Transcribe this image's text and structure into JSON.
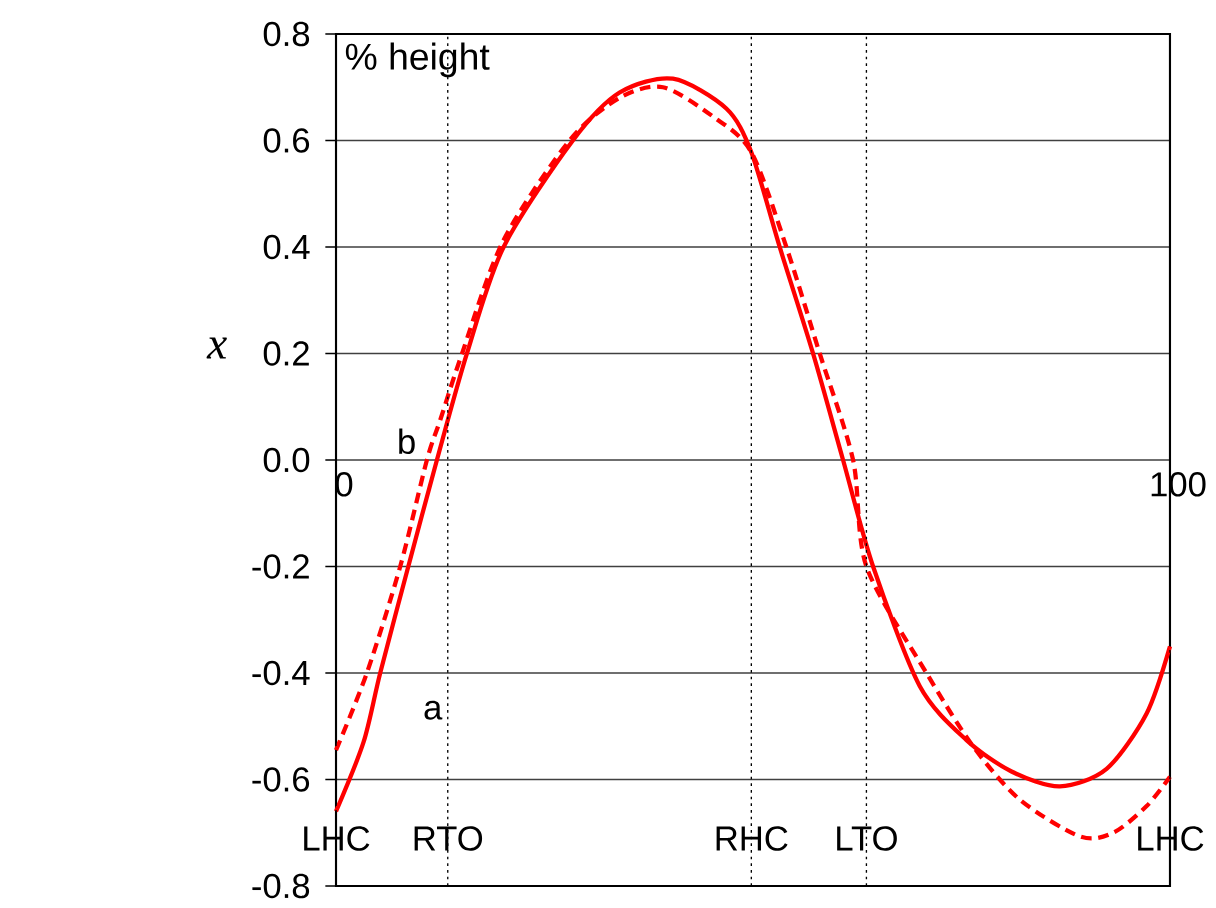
{
  "chart_data": {
    "type": "line",
    "title": "% height",
    "ylabel": "x",
    "xlim": [
      0,
      100
    ],
    "xticks": [
      0,
      100
    ],
    "ylim": [
      -0.8,
      0.8
    ],
    "yticks": [
      -0.8,
      -0.6,
      -0.4,
      -0.2,
      {
        "value": 0,
        "label": "0.0"
      },
      0.2,
      0.4,
      0.6,
      0.8
    ],
    "grid": "y",
    "marker": "none",
    "series": [
      {
        "color": "#ff0000",
        "line_style": "solid",
        "x": [
          0,
          3.3,
          5.3,
          8.5,
          12.1,
          15.7,
          20.1,
          28.4,
          34,
          40.4,
          46.8,
          49.8,
          53.2,
          57.2,
          60.8,
          64.4,
          70,
          75.6,
          81,
          86.8,
          92.4,
          97.2,
          100
        ],
        "values": [
          -0.66,
          -0.53,
          -0.4,
          -0.21,
          0.0,
          0.2,
          0.4,
          0.6,
          0.69,
          0.716,
          0.66,
          0.578,
          0.4,
          0.2,
          0.0,
          -0.2,
          -0.425,
          -0.526,
          -0.585,
          -0.613,
          -0.58,
          -0.476,
          -0.35
        ]
      },
      {
        "color": "#ff0000",
        "line_style": "dashed",
        "x": [
          0,
          3.7,
          7.7,
          10.9,
          12.5,
          14.9,
          20,
          28,
          34,
          39.2,
          45.2,
          49.8,
          54,
          58,
          62,
          63.6,
          70.8,
          76.4,
          82,
          89.2,
          93.2,
          97.2,
          100
        ],
        "values": [
          -0.545,
          -0.4,
          -0.2,
          0.0,
          0.075,
          0.19,
          0.41,
          0.6,
          0.68,
          0.7,
          0.645,
          0.578,
          0.4,
          0.2,
          0.0,
          -0.2,
          -0.4,
          -0.538,
          -0.638,
          -0.707,
          -0.7,
          -0.65,
          -0.595
        ]
      }
    ],
    "annotations": [
      {
        "text": "b",
        "x": 11.6,
        "y": 0.035
      },
      {
        "text": "a",
        "x": 4.3,
        "y": -0.47
      }
    ],
    "ref_lines": [
      {
        "axis": "x",
        "value": 0,
        "label": "LHC",
        "color": "#000000",
        "line_style": "dotted"
      },
      {
        "axis": "x",
        "value": 13.4,
        "label": "RTO",
        "color": "#000000",
        "line_style": "dotted"
      },
      {
        "axis": "x",
        "value": 49.8,
        "label": "RHC",
        "color": "#000000",
        "line_style": "dotted"
      },
      {
        "axis": "x",
        "value": 63.6,
        "label": "LTO",
        "color": "#000000",
        "line_style": "dotted"
      },
      {
        "axis": "x",
        "value": 100,
        "label": "LHC",
        "color": "#000000",
        "line_style": "dotted"
      }
    ]
  }
}
